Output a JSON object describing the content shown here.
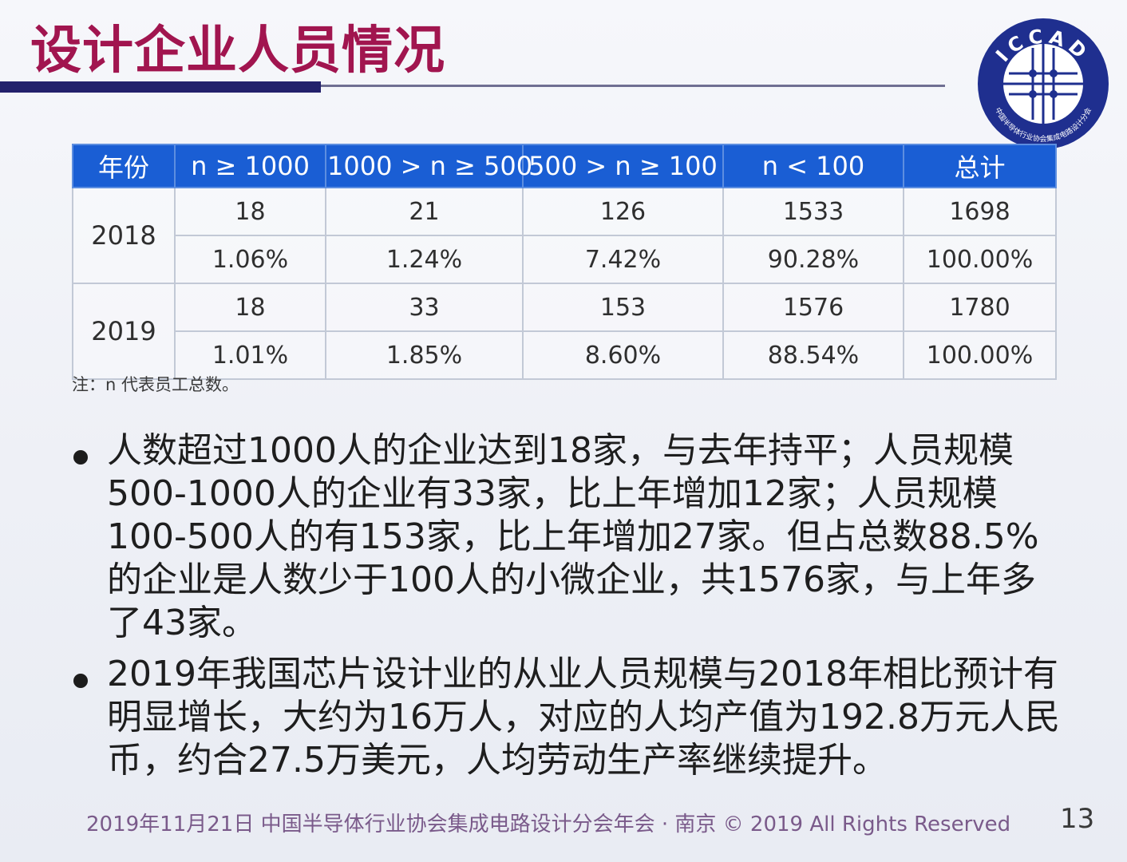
{
  "slide": {
    "title": "设计企业人员情况",
    "logo_text": "ICCAD",
    "logo_ring_text": "中国半导体行业协会集成电路设计分会",
    "page_number": "13"
  },
  "table": {
    "headers": [
      "年份",
      "n ≥ 1000",
      "1000 > n ≥ 500",
      "500 > n ≥ 100",
      "n < 100",
      "总计"
    ],
    "rows": [
      {
        "year": "2018",
        "counts": [
          "18",
          "21",
          "126",
          "1533",
          "1698"
        ],
        "percents": [
          "1.06%",
          "1.24%",
          "7.42%",
          "90.28%",
          "100.00%"
        ]
      },
      {
        "year": "2019",
        "counts": [
          "18",
          "33",
          "153",
          "1576",
          "1780"
        ],
        "percents": [
          "1.01%",
          "1.85%",
          "8.60%",
          "88.54%",
          "100.00%"
        ]
      }
    ],
    "note": "注：n 代表员工总数。"
  },
  "bullets": [
    "人数超过1000人的企业达到18家，与去年持平；人员规模500-1000人的企业有33家，比上年增加12家；人员规模100-500人的有153家，比上年增加27家。但占总数88.5%的企业是人数少于100人的小微企业，共1576家，与上年多了43家。",
    "2019年我国芯片设计业的从业人员规模与2018年相比预计有明显增长，大约为16万人，对应的人均产值为192.8万元人民币，约合27.5万美元，人均劳动生产率继续提升。"
  ],
  "footer": "2019年11月21日 中国半导体行业协会集成电路设计分会年会 · 南京 © 2019 All Rights Reserved",
  "colors": {
    "title": "#a1154f",
    "header_bg": "#1a5ed4",
    "title_rule": "#23216b",
    "logo": "#1f2f8f"
  }
}
